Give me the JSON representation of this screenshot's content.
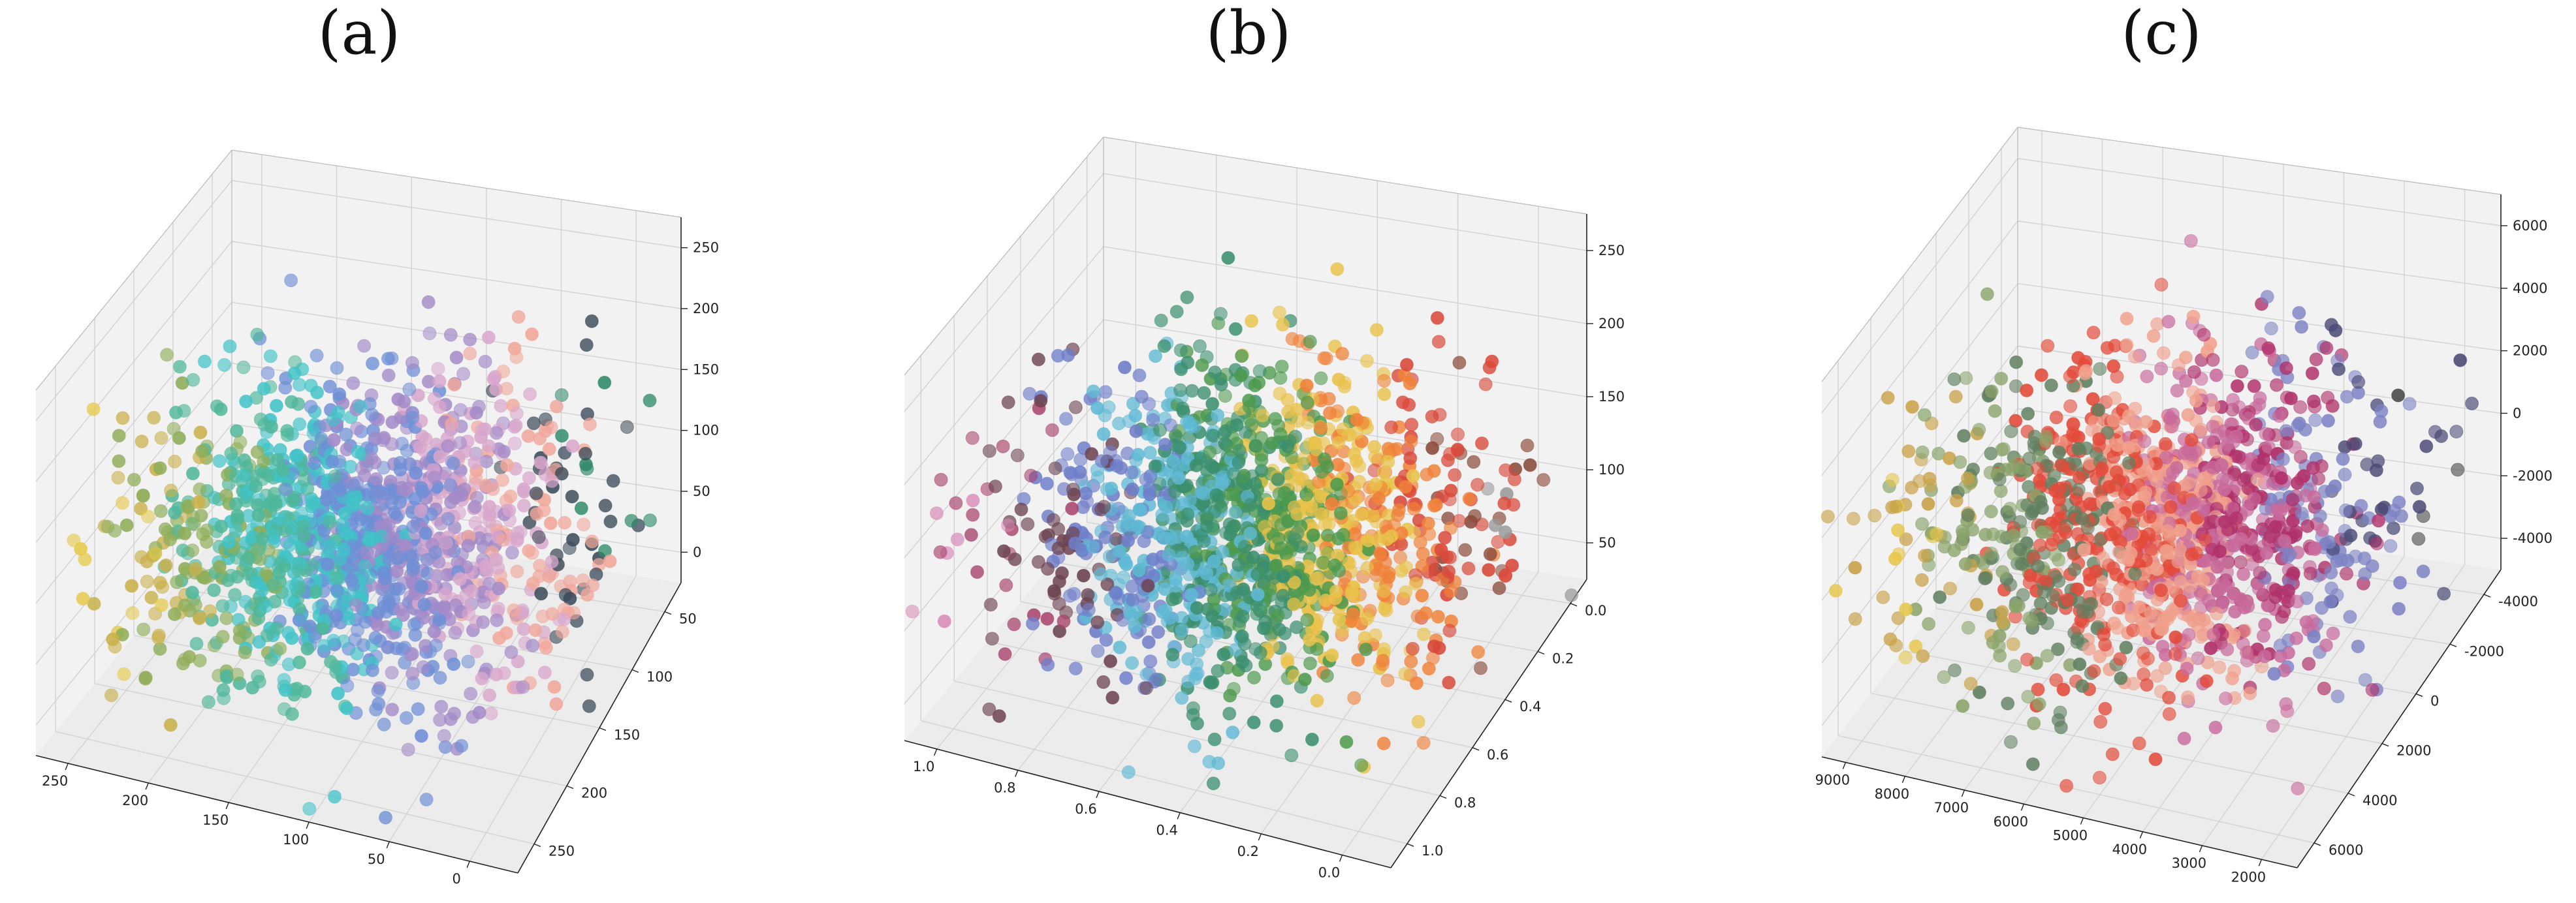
{
  "figure": {
    "panels": [
      "(a)",
      "(b)",
      "(c)"
    ]
  },
  "chart_data": [
    {
      "type": "scatter",
      "panel": "(a)",
      "projection": "3d",
      "x_ticks": [
        "250",
        "200",
        "150",
        "100",
        "50",
        "0"
      ],
      "y_ticks": [
        "50",
        "100",
        "150",
        "200",
        "250"
      ],
      "z_ticks": [
        "0",
        "50",
        "100",
        "150",
        "200",
        "250"
      ],
      "xlim": [
        0,
        255
      ],
      "ylim": [
        0,
        255
      ],
      "zlim": [
        0,
        255
      ],
      "points": 1500,
      "colors": [
        "#e6c94a",
        "#c9b04a",
        "#8fae5a",
        "#4fb79a",
        "#41c3c8",
        "#6f8fd6",
        "#a38ac8",
        "#d8a6cc",
        "#f1a79b",
        "#3a4a58",
        "#2f8a6a"
      ],
      "grid": true
    },
    {
      "type": "scatter",
      "panel": "(b)",
      "projection": "3d",
      "x_ticks": [
        "1.0",
        "0.8",
        "0.6",
        "0.4",
        "0.2",
        "0.0"
      ],
      "y_ticks": [
        "0.0",
        "0.2",
        "0.4",
        "0.6",
        "0.8",
        "1.0"
      ],
      "z_ticks": [
        "50",
        "100",
        "150",
        "200",
        "250"
      ],
      "xlim": [
        0,
        1
      ],
      "ylim": [
        0,
        1
      ],
      "zlim": [
        25,
        255
      ],
      "points": 1500,
      "colors": [
        "#d88bb8",
        "#a8456e",
        "#6d4452",
        "#6f7ec9",
        "#5fb9d4",
        "#3b8f6f",
        "#4e9a4e",
        "#e9c24a",
        "#f0823a",
        "#d94a3b",
        "#8a4a3a",
        "#9a9a9a"
      ],
      "grid": true
    },
    {
      "type": "scatter",
      "panel": "(c)",
      "projection": "3d",
      "x_ticks": [
        "9000",
        "8000",
        "7000",
        "6000",
        "5000",
        "4000",
        "3000",
        "2000"
      ],
      "y_ticks": [
        "-4000",
        "-2000",
        "0",
        "2000",
        "4000",
        "6000"
      ],
      "z_ticks": [
        "-4000",
        "-2000",
        "0",
        "2000",
        "4000",
        "6000"
      ],
      "xlim": [
        1500,
        9300
      ],
      "ylim": [
        -5000,
        6000
      ],
      "zlim": [
        -5000,
        7000
      ],
      "points": 1500,
      "colors": [
        "#e6c64a",
        "#c9a248",
        "#8aa36a",
        "#5f7f5f",
        "#e34a3a",
        "#f0a08c",
        "#c86a9c",
        "#b0316a",
        "#7c82c4",
        "#4a4a76",
        "#3f3f3f"
      ],
      "grid": true
    }
  ]
}
